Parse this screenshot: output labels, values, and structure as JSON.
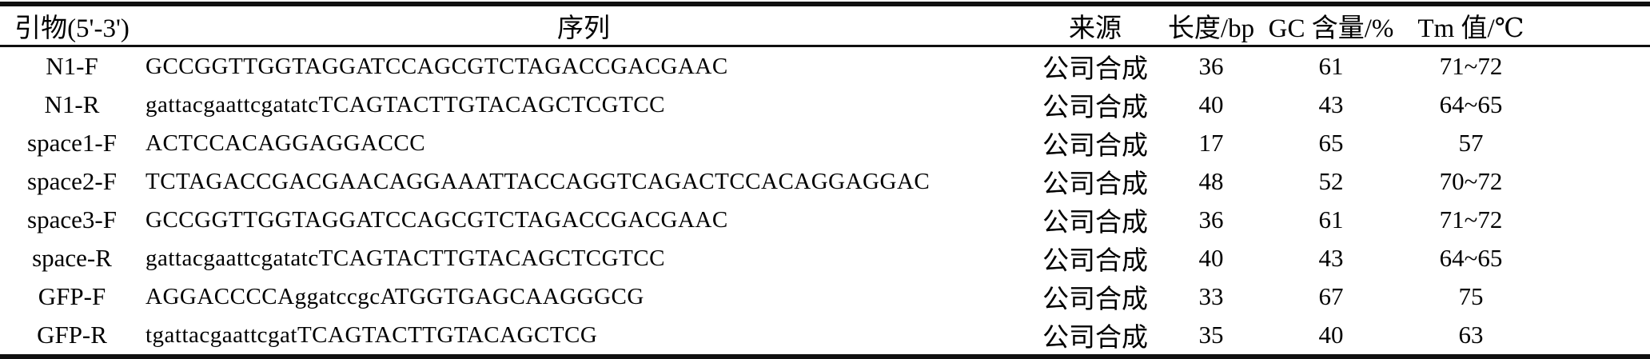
{
  "table": {
    "name": "primer-table",
    "columns": [
      {
        "key": "primer",
        "label": "引物(5'-3')"
      },
      {
        "key": "sequence",
        "label": "序列"
      },
      {
        "key": "source",
        "label": "来源"
      },
      {
        "key": "length",
        "label": "长度/bp"
      },
      {
        "key": "gc",
        "label": "GC 含量/%"
      },
      {
        "key": "tm",
        "label": "Tm 值/℃"
      }
    ],
    "rows": [
      {
        "primer": "N1-F",
        "sequence": "GCCGGTTGGTAGGATCCAGCGTCTAGACCGACGAAC",
        "source": "公司合成",
        "length": "36",
        "gc": "61",
        "tm": "71~72"
      },
      {
        "primer": "N1-R",
        "sequence": "gattacgaattcgatatcTCAGTACTTGTACAGCTCGTCC",
        "source": "公司合成",
        "length": "40",
        "gc": "43",
        "tm": "64~65"
      },
      {
        "primer": "space1-F",
        "sequence": "ACTCCACAGGAGGACCC",
        "source": "公司合成",
        "length": "17",
        "gc": "65",
        "tm": "57"
      },
      {
        "primer": "space2-F",
        "sequence": "TCTAGACCGACGAACAGGAAATTACCAGGTCAGACTCCACAGGAGGAC",
        "source": "公司合成",
        "length": "48",
        "gc": "52",
        "tm": "70~72"
      },
      {
        "primer": "space3-F",
        "sequence": "GCCGGTTGGTAGGATCCAGCGTCTAGACCGACGAAC",
        "source": "公司合成",
        "length": "36",
        "gc": "61",
        "tm": "71~72"
      },
      {
        "primer": "space-R",
        "sequence": "gattacgaattcgatatcTCAGTACTTGTACAGCTCGTCC",
        "source": "公司合成",
        "length": "40",
        "gc": "43",
        "tm": "64~65"
      },
      {
        "primer": "GFP-F",
        "sequence": "AGGACCCCAggatccgcATGGTGAGCAAGGGCG",
        "source": "公司合成",
        "length": "33",
        "gc": "67",
        "tm": "75"
      },
      {
        "primer": "GFP-R",
        "sequence": "tgattacgaattcgatTCAGTACTTGTACAGCTCG",
        "source": "公司合成",
        "length": "35",
        "gc": "40",
        "tm": "63"
      }
    ],
    "colors": {
      "rule": "#101010",
      "text": "#000000",
      "background": "#ffffff"
    }
  }
}
